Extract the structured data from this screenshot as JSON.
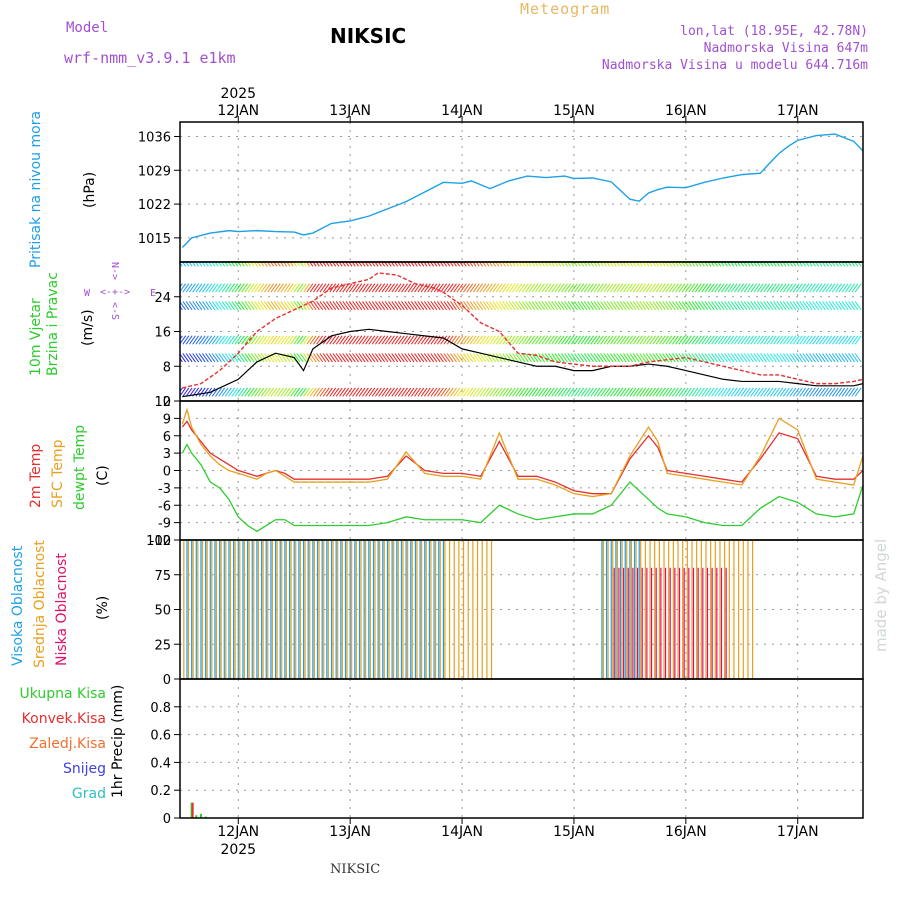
{
  "header": {
    "model_label": "Model",
    "model_name": "wrf-nmm_v3.9.1 e1km",
    "station": "NIKSIC",
    "title": "Meteogram",
    "coords": "lon,lat (18.95E, 42.78N)",
    "elevation": "Nadmorska Visina 647m",
    "model_elevation": "Nadmorska Visina u modelu 644.716m"
  },
  "time_axis": {
    "year": "2025",
    "days": [
      "12JAN",
      "13JAN",
      "14JAN",
      "15JAN",
      "16JAN",
      "17JAN"
    ],
    "day_start": [
      0,
      24,
      48,
      72,
      96,
      120
    ],
    "range_hours": [
      -12.5,
      134
    ]
  },
  "footer": {
    "station": "NIKSIC",
    "watermark": "made by Angel"
  },
  "legend": {
    "wind_compass": {
      "n": "N",
      "w": "W",
      "e": "E",
      "s": "S"
    }
  },
  "chart_data": [
    {
      "type": "line",
      "panel": "pressure",
      "ylabel_left": "Pritisak na nivou mora",
      "ylabel": "(hPa)",
      "ylim": [
        1010,
        1039
      ],
      "yticks": [
        1015,
        1022,
        1029,
        1036
      ],
      "grid": true,
      "series": [
        {
          "name": "Pritisak na nivou mora",
          "color": "#1ea0e8",
          "x": [
            -12,
            -10,
            -6,
            -2,
            0,
            4,
            8,
            12,
            14,
            16,
            18,
            20,
            24,
            28,
            32,
            36,
            40,
            44,
            48,
            50,
            54,
            58,
            62,
            66,
            70,
            72,
            76,
            80,
            84,
            86,
            88,
            90,
            92,
            96,
            100,
            104,
            108,
            112,
            114,
            116,
            118,
            120,
            124,
            128,
            132,
            134
          ],
          "values": [
            1013,
            1015,
            1016,
            1016.5,
            1016.3,
            1016.5,
            1016.3,
            1016.2,
            1015.6,
            1016,
            1017,
            1018,
            1018.5,
            1019.5,
            1021,
            1022.5,
            1024.5,
            1026.5,
            1026.3,
            1026.8,
            1025.2,
            1026.8,
            1027.8,
            1027.5,
            1027.8,
            1027.3,
            1027.4,
            1026.6,
            1023,
            1022.6,
            1024.3,
            1025,
            1025.5,
            1025.4,
            1026.5,
            1027.4,
            1028.1,
            1028.4,
            1030.5,
            1032.5,
            1034,
            1035.2,
            1036.2,
            1036.5,
            1035,
            1033
          ]
        }
      ]
    },
    {
      "type": "line",
      "panel": "wind",
      "ylabel_left": "10m Vjetar Brzina i Pravac",
      "ylabel": "(m/s)",
      "ylim": [
        0,
        32
      ],
      "yticks": [
        0,
        8,
        16,
        24
      ],
      "grid": true,
      "series": [
        {
          "name": "speed",
          "color": "#000000",
          "x": [
            -12,
            -6,
            0,
            4,
            8,
            12,
            14,
            16,
            20,
            24,
            28,
            32,
            36,
            40,
            44,
            48,
            52,
            56,
            60,
            64,
            68,
            72,
            76,
            80,
            84,
            88,
            92,
            96,
            100,
            104,
            108,
            112,
            116,
            120,
            124,
            128,
            132,
            134
          ],
          "values": [
            1,
            2,
            5,
            9,
            11,
            10,
            7,
            12,
            15,
            16,
            16.5,
            16,
            15.5,
            15,
            14.5,
            12,
            11,
            10,
            9,
            8,
            8,
            7,
            7,
            8,
            8,
            8.5,
            8,
            7,
            6,
            5,
            4.5,
            4.5,
            4.5,
            4,
            3.5,
            3.5,
            3.5,
            4
          ]
        },
        {
          "name": "gust",
          "color": "#e53030",
          "x": [
            -12,
            -8,
            -4,
            0,
            4,
            8,
            12,
            16,
            20,
            24,
            28,
            30,
            34,
            38,
            42,
            44,
            48,
            52,
            56,
            60,
            64,
            68,
            72,
            76,
            80,
            84,
            88,
            92,
            96,
            100,
            104,
            108,
            112,
            116,
            120,
            124,
            128,
            132,
            134
          ],
          "values": [
            3,
            4,
            7,
            11,
            16,
            19,
            21,
            23,
            26,
            27,
            28,
            29.5,
            29,
            27,
            26,
            25,
            22,
            18,
            16,
            11,
            10.5,
            9,
            8.5,
            8,
            8,
            8,
            9,
            9.5,
            10,
            9,
            8,
            7,
            6,
            6,
            5,
            4,
            4,
            4.5,
            5
          ]
        }
      ]
    },
    {
      "type": "line",
      "panel": "temperature",
      "ylabel_left": [
        "2m Temp",
        "SFC Temp",
        "dewpt Temp"
      ],
      "ylabel": "(C)",
      "ylim": [
        -12,
        12
      ],
      "yticks": [
        -12,
        -9,
        -6,
        -3,
        0,
        3,
        6,
        9,
        12
      ],
      "grid": true,
      "series": [
        {
          "name": "2m Temp",
          "color": "#e53030",
          "x": [
            -12,
            -11,
            -10,
            -8,
            -6,
            -4,
            -2,
            0,
            2,
            4,
            6,
            8,
            10,
            12,
            16,
            20,
            24,
            28,
            32,
            36,
            40,
            44,
            48,
            52,
            56,
            60,
            64,
            68,
            72,
            76,
            80,
            84,
            88,
            90,
            92,
            96,
            100,
            104,
            108,
            112,
            116,
            120,
            124,
            128,
            132,
            134
          ],
          "values": [
            7.5,
            8.5,
            7,
            5,
            3,
            2,
            1,
            0,
            -0.5,
            -1,
            -0.5,
            0,
            -0.5,
            -1.5,
            -1.5,
            -1.5,
            -1.5,
            -1.5,
            -1,
            2.5,
            0,
            -0.5,
            -0.5,
            -1,
            5,
            -1,
            -1,
            -2,
            -3.5,
            -4,
            -4,
            2,
            6,
            4,
            0,
            -0.5,
            -1,
            -1.5,
            -2,
            2,
            6.5,
            5.5,
            -1,
            -1.5,
            -1.5,
            0
          ]
        },
        {
          "name": "SFC Temp",
          "color": "#e8a020",
          "x": [
            -12,
            -11,
            -10,
            -8,
            -6,
            -4,
            -2,
            0,
            2,
            4,
            6,
            8,
            10,
            12,
            16,
            20,
            24,
            28,
            32,
            36,
            40,
            44,
            48,
            52,
            56,
            60,
            64,
            68,
            72,
            76,
            80,
            84,
            88,
            90,
            92,
            96,
            100,
            104,
            108,
            112,
            116,
            120,
            124,
            128,
            132,
            134
          ],
          "values": [
            8,
            10.5,
            7.5,
            4.5,
            2.5,
            1,
            0,
            -0.5,
            -1,
            -1.5,
            -0.5,
            0,
            -1,
            -2,
            -2,
            -2,
            -2,
            -2,
            -1.5,
            3.2,
            -0.5,
            -1,
            -1,
            -1.5,
            6.5,
            -1.5,
            -1.5,
            -2.5,
            -4,
            -4.5,
            -4,
            2.5,
            7.5,
            5,
            -0.5,
            -1,
            -1.5,
            -2,
            -2.5,
            2.5,
            9,
            7,
            -1.5,
            -2,
            -2.5,
            2.5
          ]
        },
        {
          "name": "dewpt Temp",
          "color": "#2ecc2e",
          "x": [
            -12,
            -11,
            -10,
            -8,
            -6,
            -4,
            -2,
            0,
            2,
            4,
            6,
            8,
            10,
            12,
            16,
            20,
            24,
            28,
            32,
            36,
            40,
            44,
            48,
            52,
            56,
            60,
            64,
            68,
            72,
            76,
            80,
            84,
            88,
            90,
            92,
            96,
            100,
            104,
            108,
            112,
            116,
            120,
            124,
            128,
            132,
            134
          ],
          "values": [
            3,
            4.5,
            3,
            1,
            -2,
            -3,
            -5,
            -8,
            -9.5,
            -10.5,
            -9.5,
            -8.5,
            -8.5,
            -9.5,
            -9.5,
            -9.5,
            -9.5,
            -9.5,
            -9,
            -8,
            -8.5,
            -8.5,
            -8.5,
            -9,
            -6,
            -7.5,
            -8.5,
            -8,
            -7.5,
            -7.5,
            -6,
            -2,
            -5,
            -6.5,
            -7.5,
            -8,
            -9,
            -9.5,
            -9.5,
            -6.5,
            -4.5,
            -5.5,
            -7.5,
            -8,
            -7.5,
            -2.5
          ]
        }
      ]
    },
    {
      "type": "bar",
      "panel": "clouds",
      "ylabel_left": [
        "Visoka Oblacnost",
        "Srednja Oblacnost",
        "Niska Oblacnost"
      ],
      "ylabel": "(%)",
      "ylim": [
        0,
        100
      ],
      "yticks": [
        0,
        25,
        50,
        75,
        100
      ],
      "grid": true,
      "series": [
        {
          "name": "Visoka Oblacnost",
          "color": "#1ea0e8",
          "segments": [
            {
              "from": -11,
              "to": 44,
              "value": 100
            },
            {
              "from": 78,
              "to": 86,
              "value": 100
            }
          ]
        },
        {
          "name": "Srednja Oblacnost",
          "color": "#e8a020",
          "segments": [
            {
              "from": -12,
              "to": 54,
              "value": 100
            },
            {
              "from": 78,
              "to": 110,
              "value": 100
            }
          ]
        },
        {
          "name": "Niska Oblacnost",
          "color": "#e0106a",
          "segments": [
            {
              "from": 80,
              "to": 104,
              "value": 80
            }
          ]
        }
      ]
    },
    {
      "type": "bar",
      "panel": "precip",
      "ylabel_left": [
        "Ukupna Kisa",
        "Konvek.Kisa",
        "Zaledj.Kisa",
        "Snijeg",
        "Grad"
      ],
      "ylabel": "1hr Precip (mm)",
      "ylim": [
        0,
        1
      ],
      "yticks": [
        0,
        0.2,
        0.4,
        0.6,
        0.8
      ],
      "grid": true,
      "series": [
        {
          "name": "Ukupna Kisa",
          "color": "#2ecc2e",
          "x": [
            -10,
            -9,
            -8,
            -7
          ],
          "values": [
            0.11,
            0.02,
            0.03,
            0.01
          ]
        },
        {
          "name": "Konvek.Kisa",
          "color": "#e53030",
          "x": [
            -10
          ],
          "values": [
            0.11
          ]
        },
        {
          "name": "Zaledj.Kisa",
          "color": "#f07030",
          "x": [],
          "values": []
        },
        {
          "name": "Snijeg",
          "color": "#4040e0",
          "x": [],
          "values": []
        },
        {
          "name": "Grad",
          "color": "#30c0c0",
          "x": [],
          "values": []
        }
      ]
    }
  ]
}
